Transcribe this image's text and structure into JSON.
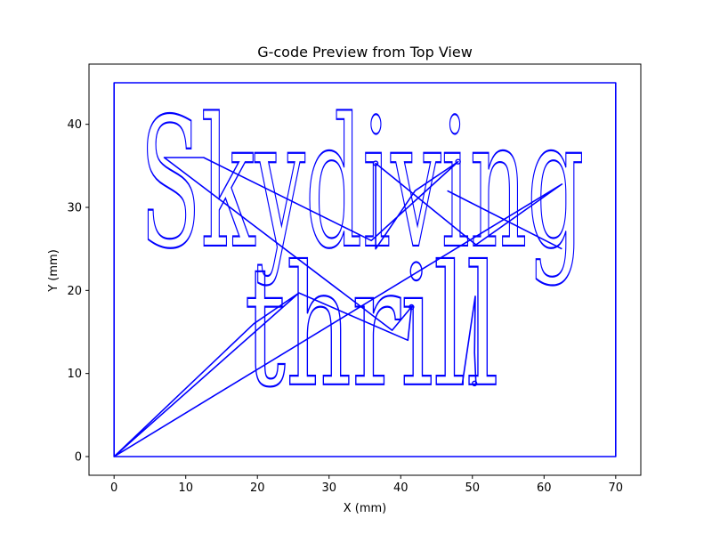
{
  "chart_data": {
    "type": "line",
    "title": "G-code Preview from Top View",
    "xlabel": "X (mm)",
    "ylabel": "Y (mm)",
    "xlim": [
      -3.5,
      73.5
    ],
    "ylim": [
      -2.25,
      47.25
    ],
    "xticks": [
      0,
      10,
      20,
      30,
      40,
      50,
      60,
      70
    ],
    "yticks": [
      0,
      10,
      20,
      30,
      40
    ],
    "grid": false,
    "line_color": "#0000ff",
    "annotations": [
      "Skydiving",
      "thrill"
    ],
    "series": [
      {
        "role": "border",
        "points": [
          [
            0,
            0
          ],
          [
            70,
            0
          ],
          [
            70,
            45
          ],
          [
            0,
            45
          ],
          [
            0,
            0
          ]
        ]
      },
      {
        "role": "travel-moves",
        "points": [
          [
            0,
            0
          ],
          [
            25.8,
            19.7
          ],
          [
            41.0,
            14.0
          ],
          [
            41.5,
            18.0
          ],
          [
            38.8,
            15.2
          ],
          [
            7.0,
            36.0
          ],
          [
            12.5,
            36.0
          ],
          [
            35.9,
            26.0
          ],
          [
            48.0,
            35.5
          ],
          [
            42.0,
            32.0
          ],
          [
            36.5,
            25.0
          ],
          [
            36.5,
            35.3
          ],
          [
            50.5,
            25.5
          ],
          [
            62.5,
            32.8
          ],
          [
            0,
            0
          ],
          [
            19.5,
            16.0
          ],
          [
            25.8,
            19.7
          ]
        ]
      },
      {
        "role": "travel-moves",
        "points": [
          [
            46.5,
            32.0
          ],
          [
            62.5,
            25.0
          ]
        ]
      },
      {
        "role": "travel-moves",
        "points": [
          [
            48.6,
            8.8
          ],
          [
            50.4,
            19.3
          ],
          [
            50.3,
            12.5
          ],
          [
            50.5,
            8.8
          ]
        ]
      }
    ]
  }
}
